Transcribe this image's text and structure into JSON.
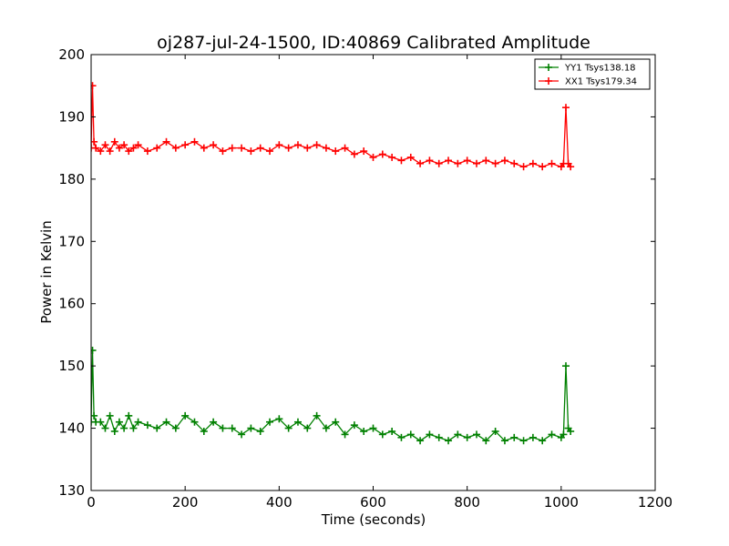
{
  "chart_data": {
    "type": "line",
    "title": "oj287-jul-24-1500, ID:40869 Calibrated Amplitude",
    "xlabel": "Time (seconds)",
    "ylabel": "Power in Kelvin",
    "xlim": [
      0,
      1200
    ],
    "ylim": [
      130,
      200
    ],
    "xticks": [
      0,
      200,
      400,
      600,
      800,
      1000,
      1200
    ],
    "yticks": [
      130,
      140,
      150,
      160,
      170,
      180,
      190,
      200
    ],
    "xtick_labels": [
      "0",
      "200",
      "400",
      "600",
      "800",
      "1000",
      "1200"
    ],
    "ytick_labels": [
      "130",
      "140",
      "150",
      "160",
      "170",
      "180",
      "190",
      "200"
    ],
    "grid": false,
    "legend_position": "top-right",
    "marker": "+",
    "series": [
      {
        "name": "YY1 Tsys138.18",
        "color": "#008000",
        "x": [
          0,
          3,
          6,
          10,
          20,
          30,
          40,
          50,
          60,
          70,
          80,
          90,
          100,
          120,
          140,
          160,
          180,
          200,
          220,
          240,
          260,
          280,
          300,
          320,
          340,
          360,
          380,
          400,
          420,
          440,
          460,
          480,
          500,
          520,
          540,
          560,
          580,
          600,
          620,
          640,
          660,
          680,
          700,
          720,
          740,
          760,
          780,
          800,
          820,
          840,
          860,
          880,
          900,
          920,
          940,
          960,
          980,
          1000,
          1005,
          1010,
          1015,
          1020
        ],
        "y": [
          141,
          152.5,
          142,
          141,
          141,
          140,
          142,
          139.5,
          141,
          140,
          142,
          140,
          141,
          140.5,
          140,
          141,
          140,
          142,
          141,
          139.5,
          141,
          140,
          140,
          139,
          140,
          139.5,
          141,
          141.5,
          140,
          141,
          140,
          142,
          140,
          141,
          139,
          140.5,
          139.5,
          140,
          139,
          139.5,
          138.5,
          139,
          138,
          139,
          138.5,
          138,
          139,
          138.5,
          139,
          138,
          139.5,
          138,
          138.5,
          138,
          138.5,
          138,
          139,
          138.5,
          139,
          150,
          140,
          139.5
        ]
      },
      {
        "name": "XX1 Tsys179.34",
        "color": "#ff0000",
        "x": [
          0,
          3,
          6,
          10,
          20,
          30,
          40,
          50,
          60,
          70,
          80,
          90,
          100,
          120,
          140,
          160,
          180,
          200,
          220,
          240,
          260,
          280,
          300,
          320,
          340,
          360,
          380,
          400,
          420,
          440,
          460,
          480,
          500,
          520,
          540,
          560,
          580,
          600,
          620,
          640,
          660,
          680,
          700,
          720,
          740,
          760,
          780,
          800,
          820,
          840,
          860,
          880,
          900,
          920,
          940,
          960,
          980,
          1000,
          1005,
          1010,
          1015,
          1020
        ],
        "y": [
          185,
          195,
          186,
          185,
          184.5,
          185.5,
          184.5,
          186,
          185,
          185.5,
          184.5,
          185,
          185.5,
          184.5,
          185,
          186,
          185,
          185.5,
          186,
          185,
          185.5,
          184.5,
          185,
          185,
          184.5,
          185,
          184.5,
          185.5,
          185,
          185.5,
          185,
          185.5,
          185,
          184.5,
          185,
          184,
          184.5,
          183.5,
          184,
          183.5,
          183,
          183.5,
          182.5,
          183,
          182.5,
          183,
          182.5,
          183,
          182.5,
          183,
          182.5,
          183,
          182.5,
          182,
          182.5,
          182,
          182.5,
          182,
          182.5,
          191.5,
          182.5,
          182
        ]
      }
    ]
  }
}
